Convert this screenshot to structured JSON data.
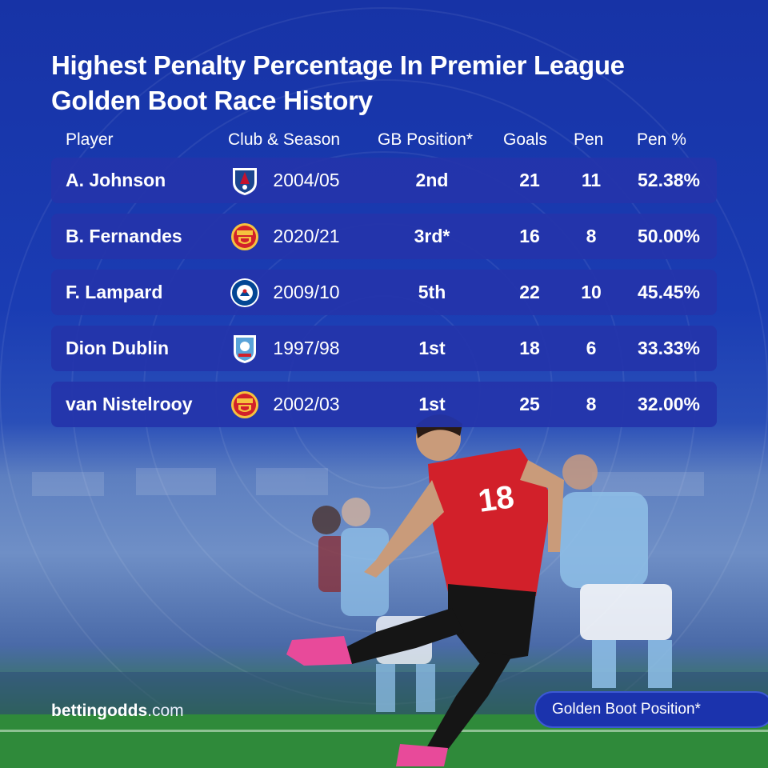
{
  "title_line1": "Highest Penalty Percentage In Premier League",
  "title_line2": "Golden Boot Race History",
  "columns": {
    "player": "Player",
    "club_season": "Club & Season",
    "gb_position": "GB Position*",
    "goals": "Goals",
    "pen": "Pen",
    "pen_pct": "Pen %"
  },
  "rows": [
    {
      "player": "A. Johnson",
      "club_icon": "crystal-palace-crest-icon",
      "season": "2004/05",
      "gb": "2nd",
      "goals": "21",
      "pen": "11",
      "pct": "52.38%"
    },
    {
      "player": "B. Fernandes",
      "club_icon": "manchester-united-crest-icon",
      "season": "2020/21",
      "gb": "3rd*",
      "goals": "16",
      "pen": "8",
      "pct": "50.00%"
    },
    {
      "player": "F. Lampard",
      "club_icon": "chelsea-crest-icon",
      "season": "2009/10",
      "gb": "5th",
      "goals": "22",
      "pen": "10",
      "pct": "45.45%"
    },
    {
      "player": "Dion Dublin",
      "club_icon": "coventry-city-crest-icon",
      "season": "1997/98",
      "gb": "1st",
      "goals": "18",
      "pen": "6",
      "pct": "33.33%"
    },
    {
      "player": "van Nistelrooy",
      "club_icon": "manchester-united-crest-icon",
      "season": "2002/03",
      "gb": "1st",
      "goals": "25",
      "pen": "8",
      "pct": "32.00%"
    }
  ],
  "brand": {
    "name": "bettingodds",
    "suffix": ".com"
  },
  "footnote": "Golden Boot Position*",
  "colors": {
    "background": "#1a3cb3",
    "row": "#2434aa",
    "man_utd_red": "#d2202a",
    "man_city_blue": "#8fc0e8"
  }
}
